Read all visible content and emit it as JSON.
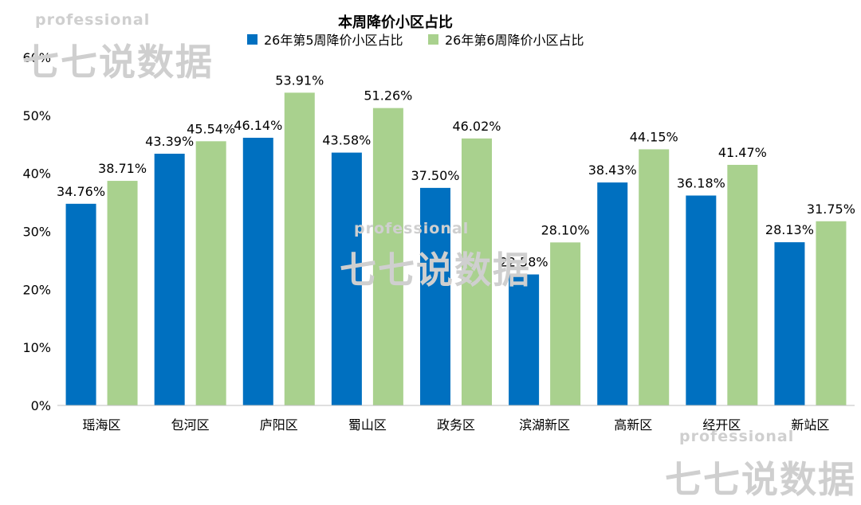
{
  "chart_data": {
    "type": "bar",
    "title": "本周降价小区占比",
    "categories": [
      "瑶海区",
      "包河区",
      "庐阳区",
      "蜀山区",
      "政务区",
      "滨湖新区",
      "高新区",
      "经开区",
      "新站区"
    ],
    "series": [
      {
        "name": "26年第5周降价小区占比",
        "color": "#0070C0",
        "values": [
          34.76,
          43.39,
          46.14,
          43.58,
          37.5,
          22.58,
          38.43,
          36.18,
          28.13
        ],
        "labels": [
          "34.76%",
          "43.39%",
          "46.14%",
          "43.58%",
          "37.50%",
          "22.58%",
          "38.43%",
          "36.18%",
          "28.13%"
        ]
      },
      {
        "name": "26年第6周降价小区占比",
        "color": "#A9D18E",
        "values": [
          38.71,
          45.54,
          53.91,
          51.26,
          46.02,
          28.1,
          44.15,
          41.47,
          31.75
        ],
        "labels": [
          "38.71%",
          "45.54%",
          "53.91%",
          "51.26%",
          "46.02%",
          "28.10%",
          "44.15%",
          "41.47%",
          "31.75%"
        ]
      }
    ],
    "ylim": [
      0,
      60
    ],
    "yticks": [
      "0%",
      "10%",
      "20%",
      "30%",
      "40%",
      "50%",
      "60%"
    ],
    "grid": false,
    "legend_position": "top"
  },
  "watermark": {
    "tag": "professional",
    "name": "七七说数据"
  }
}
